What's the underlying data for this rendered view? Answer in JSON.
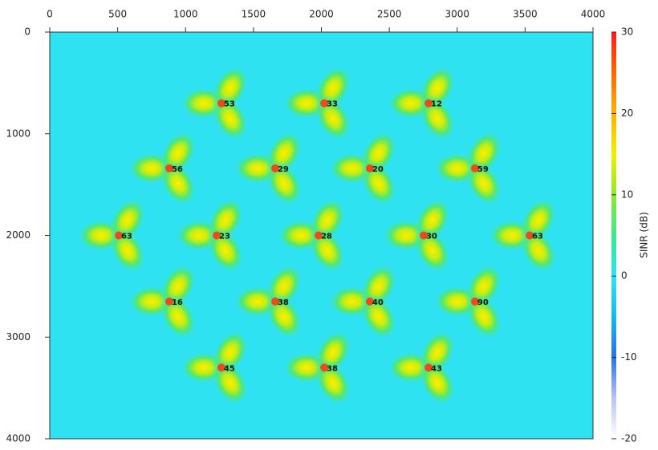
{
  "chart_data": {
    "type": "scatter",
    "x": [
      1264,
      2021,
      2789,
      880,
      1660,
      2357,
      3131,
      508,
      1229,
      1979,
      2753,
      3533,
      880,
      1660,
      2357,
      3131,
      1264,
      2021,
      2789
    ],
    "y": [
      700,
      700,
      700,
      1340,
      1340,
      1340,
      1340,
      2000,
      2000,
      2000,
      2000,
      2000,
      2650,
      2650,
      2650,
      2650,
      3300,
      3300,
      3300
    ],
    "labels": [
      "53",
      "33",
      "12",
      "56",
      "29",
      "20",
      "59",
      "63",
      "23",
      "28",
      "30",
      "63",
      "16",
      "38",
      "40",
      "90",
      "45",
      "38",
      "43"
    ],
    "xlim": [
      0,
      4000
    ],
    "xticks": [
      0,
      500,
      1000,
      1500,
      2000,
      2500,
      3000,
      3500,
      4000
    ],
    "ylim": [
      4000,
      0
    ],
    "yticks": [
      0,
      1000,
      2000,
      3000,
      4000
    ],
    "background_color": "#2fe2f2",
    "colorbar": {
      "label": "SINR (dB)",
      "lim": [
        -20,
        30
      ],
      "ticks": [
        -20,
        -10,
        0,
        10,
        20,
        30
      ],
      "colors": [
        "#ffffff",
        "#b8c4f0",
        "#2a6ff0",
        "#19b8f0",
        "#2fe2f2",
        "#3ee88c",
        "#8ee830",
        "#f0f000",
        "#ffb000",
        "#ff6a00",
        "#ff1a1a"
      ]
    }
  }
}
